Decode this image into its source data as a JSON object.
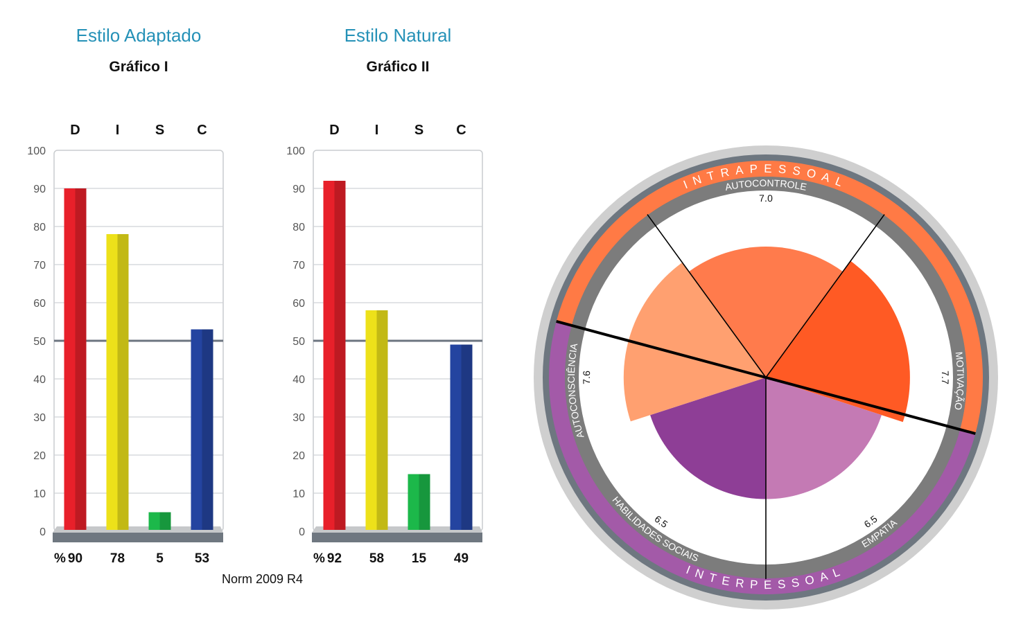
{
  "charts": [
    {
      "style_title": "Estilo Adaptado",
      "graph_title": "Gráfico I"
    },
    {
      "style_title": "Estilo Natural",
      "graph_title": "Gráfico II"
    }
  ],
  "footnote": "Norm 2009 R4",
  "colors": {
    "title_blue": "#2591b7",
    "D": "#e8202a",
    "I": "#ede11a",
    "S": "#1cb84a",
    "C": "#2444a0",
    "intra": "#ff7a45",
    "inter": "#a35aa8",
    "autocontrole": "#ff7b4c",
    "motivacao": "#ff5a24",
    "autoconsciencia": "#ffa070",
    "empatia": "#c47ab4",
    "habilidades": "#8e3e96"
  },
  "chart_data": [
    {
      "type": "bar",
      "title": "Gráfico I",
      "categories": [
        "D",
        "I",
        "S",
        "C"
      ],
      "values": [
        90,
        78,
        5,
        53
      ],
      "ylim": [
        0,
        100
      ],
      "yticks": [
        0,
        10,
        20,
        30,
        40,
        50,
        60,
        70,
        80,
        90,
        100
      ],
      "value_prefix": "%",
      "midline": 50,
      "grid": true
    },
    {
      "type": "bar",
      "title": "Gráfico II",
      "categories": [
        "D",
        "I",
        "S",
        "C"
      ],
      "values": [
        92,
        58,
        15,
        49
      ],
      "ylim": [
        0,
        100
      ],
      "yticks": [
        0,
        10,
        20,
        30,
        40,
        50,
        60,
        70,
        80,
        90,
        100
      ],
      "value_prefix": "%",
      "midline": 50,
      "grid": true
    },
    {
      "type": "pie",
      "ring_top": "INTRAPESSOAL",
      "ring_bottom": "INTERPESSOAL",
      "scale_max": 10,
      "slices": [
        {
          "label": "AUTOCONTROLE",
          "value": 7.0,
          "group": "intra"
        },
        {
          "label": "MOTIVAÇÃO",
          "value": 7.7,
          "group": "intra"
        },
        {
          "label": "EMPATIA",
          "value": 6.5,
          "group": "inter"
        },
        {
          "label": "HABILIDADES SOCIAIS",
          "value": 6.5,
          "group": "inter"
        },
        {
          "label": "AUTOCONSCIÊNCIA",
          "value": 7.6,
          "group": "intra"
        }
      ]
    }
  ]
}
